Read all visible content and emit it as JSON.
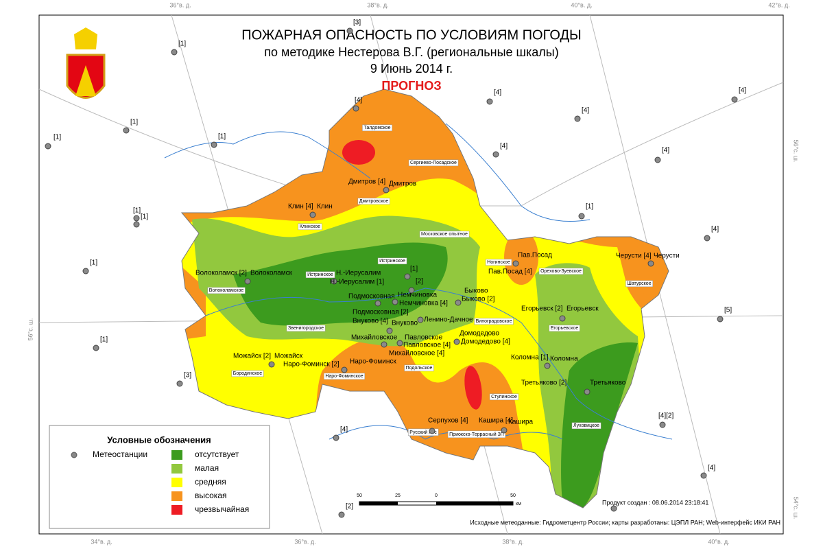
{
  "header": {
    "title": "ПОЖАРНАЯ ОПАСНОСТЬ ПО УСЛОВИЯМ ПОГОДЫ",
    "subtitle": "по методике Нестерова В.Г. (региональные шкалы)",
    "date": "9 Июнь 2014 г.",
    "forecast": "ПРОГНОЗ"
  },
  "legend": {
    "title": "Условные обозначения",
    "stations_label": "Метеостанции",
    "classes": [
      {
        "label": "отсутствует",
        "color": "#3c9b1e"
      },
      {
        "label": "малая",
        "color": "#92c83e"
      },
      {
        "label": "средняя",
        "color": "#ffff00"
      },
      {
        "label": "высокая",
        "color": "#f7931e"
      },
      {
        "label": "чрезвычайная",
        "color": "#ee1c24"
      }
    ]
  },
  "graticule": {
    "top": [
      "36°в. д.",
      "38°в. д.",
      "40°в. д.",
      "42°в. д."
    ],
    "bottom": [
      "34°в. д.",
      "36°в. д.",
      "38°в. д.",
      "40°в. д."
    ],
    "left": [
      "56°с. ш."
    ],
    "right": [
      "56°с. ш.",
      "54°с. ш."
    ]
  },
  "stations": [
    "[1]",
    "[1]",
    "[1]",
    "[1]",
    "[1]",
    "[1]",
    "[1]",
    "[1]",
    "[3]",
    "[4]",
    "[2]",
    "[3]",
    "[4]",
    "[4]",
    "[4]",
    "[4]",
    "[4]",
    "[4]",
    "[1]",
    "[4]",
    "[5]",
    "[4][2]",
    "[4]",
    "Дмитров [4]",
    "Дмитров",
    "Клин [4]",
    "Клин",
    "Волоколамск [2]",
    "Волоколамск",
    "Н.-Иерусалим",
    "Н.-Иерусалим [1]",
    "[1]",
    "[2]",
    "Немчиновка",
    "Немчиновка [4]",
    "Подмосковная",
    "Подмосковная [2]",
    "Быково",
    "Быково [2]",
    "Внуково [4]",
    "Внуково",
    "Ленино-Дачное",
    "Домодедово",
    "Домодедово [4]",
    "Михайловское",
    "Павловское",
    "Павловское [4]",
    "Михайловское [4]",
    "Можайск [2]",
    "Можайск",
    "Наро-Фоминск [2]",
    "Наро-Фоминск",
    "Коломна [1]",
    "Коломна",
    "Егорьевск [2]",
    "Егорьевск",
    "Третьяково [2]",
    "Третьяково",
    "Серпухов [4]",
    "Кашира [4]",
    "Кашира",
    "Пав.Посад",
    "Пав.Посад [4]",
    "Черусти [4]",
    "Черусти"
  ],
  "areas": [
    "Талдомское",
    "Сергиево-Посадское",
    "Дмитровское",
    "Клинское",
    "Московское опытное",
    "Истринское",
    "Истринское",
    "Волоколамское",
    "Звенигородское",
    "Бородинское",
    "Наро-Фоминское",
    "Подольское",
    "Виноградовское",
    "Ногинское",
    "Орехово-Зуевское",
    "Шатурское",
    "Егорьевское",
    "Ступинское",
    "Луховицкое",
    "Русский лес",
    "Приокско-Террасный ЗП"
  ],
  "scale_bar": {
    "ticks": [
      "50",
      "25",
      "0",
      "50"
    ],
    "unit": "км"
  },
  "footer": {
    "created": "Продукт создан : 08.06.2014 23:18:41",
    "source": "Исходные метеоданные: Гидрометцентр России; карты разработаны: ЦЭПЛ РАН; Web-интерфейс ИКИ РАН"
  }
}
